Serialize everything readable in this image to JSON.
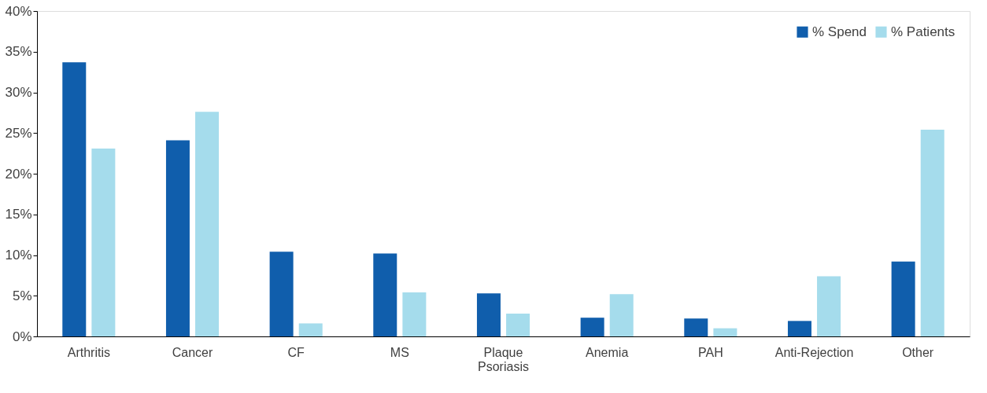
{
  "chart_data": {
    "type": "bar",
    "categories": [
      "Arthritis",
      "Cancer",
      "CF",
      "MS",
      "Plaque Psoriasis",
      "Anemia",
      "PAH",
      "Anti-Rejection",
      "Other"
    ],
    "series": [
      {
        "name": "% Spend",
        "color": "#105eac",
        "values": [
          33.7,
          24.1,
          10.4,
          10.2,
          5.3,
          2.3,
          2.2,
          1.9,
          9.2
        ]
      },
      {
        "name": "% Patients",
        "color": "#a5dcec",
        "values": [
          23.1,
          27.6,
          1.6,
          5.4,
          2.8,
          5.2,
          1.0,
          7.4,
          25.4
        ]
      }
    ],
    "ylim": [
      0,
      40
    ],
    "yticks": [
      {
        "value": 0,
        "label": "0%"
      },
      {
        "value": 5,
        "label": "5%"
      },
      {
        "value": 10,
        "label": "10%"
      },
      {
        "value": 15,
        "label": "15%"
      },
      {
        "value": 20,
        "label": "20%"
      },
      {
        "value": 25,
        "label": "25%"
      },
      {
        "value": 30,
        "label": "30%"
      },
      {
        "value": 35,
        "label": "35%"
      },
      {
        "value": 40,
        "label": "40%"
      }
    ],
    "grid": false,
    "legend": "top right"
  }
}
